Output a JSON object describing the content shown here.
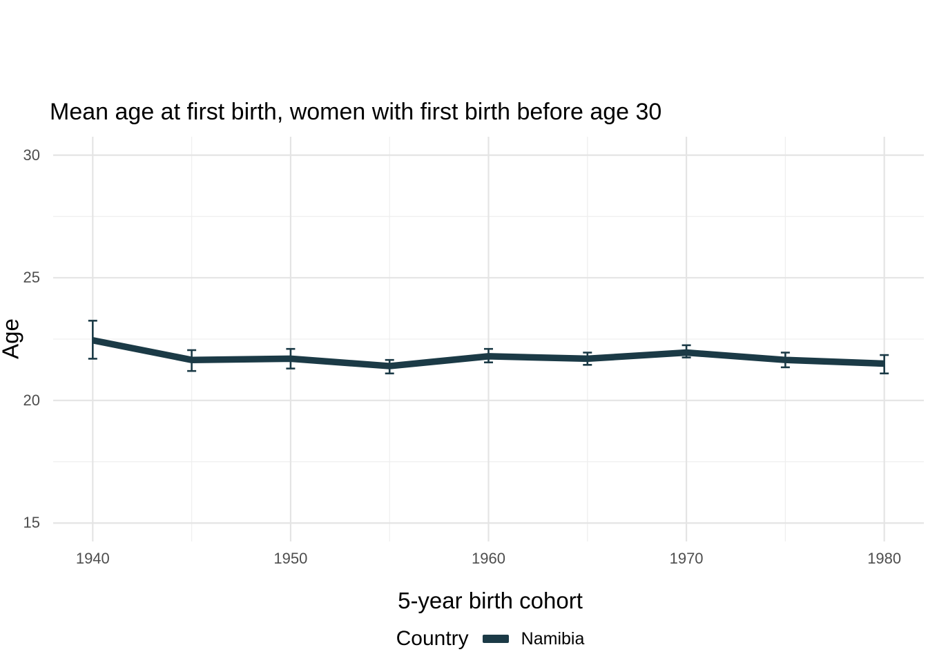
{
  "title": "Mean age at first birth, women with first birth before age 30",
  "axes": {
    "x_label": "5-year birth cohort",
    "y_label": "Age"
  },
  "legend": {
    "title": "Country",
    "items": [
      {
        "label": "Namibia",
        "color": "#1b3a46"
      }
    ]
  },
  "colors": {
    "series": "#1b3a46",
    "tick_label": "#4d4d4d",
    "title_text": "#000000",
    "grid_major": "#e4e4e4",
    "grid_minor": "#efefef",
    "background": "#ffffff"
  },
  "chart_data": {
    "type": "line",
    "title": "Mean age at first birth, women with first birth before age 30",
    "xlabel": "5-year birth cohort",
    "ylabel": "Age",
    "x": [
      1940,
      1945,
      1950,
      1955,
      1960,
      1965,
      1970,
      1975,
      1980
    ],
    "series": [
      {
        "name": "Namibia",
        "color": "#1b3a46",
        "values": [
          22.45,
          21.65,
          21.7,
          21.4,
          21.8,
          21.7,
          21.95,
          21.65,
          21.5
        ],
        "ci_low": [
          21.7,
          21.2,
          21.3,
          21.1,
          21.55,
          21.45,
          21.75,
          21.35,
          21.1
        ],
        "ci_high": [
          23.25,
          22.05,
          22.1,
          21.65,
          22.1,
          21.95,
          22.25,
          21.95,
          21.85
        ]
      }
    ],
    "error_bars": true,
    "xticks": [
      1940,
      1950,
      1960,
      1970,
      1980
    ],
    "xticks_minor": [
      1945,
      1955,
      1965,
      1975
    ],
    "yticks": [
      15,
      20,
      25,
      30
    ],
    "yticks_minor": [
      17.5,
      22.5,
      27.5
    ],
    "xlim": [
      1938,
      1982
    ],
    "ylim": [
      14.25,
      30.75
    ],
    "grid": true,
    "legend_position": "bottom",
    "legend_title": "Country"
  }
}
